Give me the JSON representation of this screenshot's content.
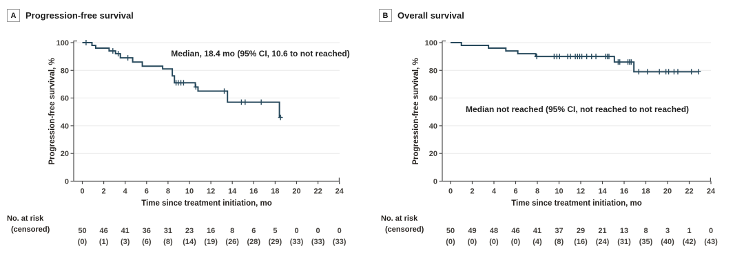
{
  "colors": {
    "curve": "#27495c",
    "grid": "#e9e9e9",
    "axis": "#4c4c4c",
    "tick_text": "#43403c",
    "title_text": "#1c1c1c",
    "panel_box_border": "#9b9b9b"
  },
  "chart_data": [
    {
      "type": "line",
      "subtype": "kaplan-meier-step",
      "panel_label": "A",
      "title": "Progression-free survival",
      "annotation": "Median, 18.4 mo (95% CI, 10.6 to not reached)",
      "xlabel": "Time since treatment initiation, mo",
      "ylabel": "Progression-free survival, %",
      "xlim": [
        0,
        24
      ],
      "ylim": [
        0,
        100
      ],
      "grid": "horizontal",
      "x_ticks": [
        0,
        2,
        4,
        6,
        8,
        10,
        12,
        14,
        16,
        18,
        20,
        22,
        24
      ],
      "y_ticks": [
        0,
        20,
        40,
        60,
        80,
        100
      ],
      "start": [
        0,
        100
      ],
      "drops": [
        [
          0.9,
          98
        ],
        [
          1.25,
          96
        ],
        [
          2.5,
          94
        ],
        [
          3.1,
          92
        ],
        [
          3.55,
          89
        ],
        [
          4.7,
          86
        ],
        [
          5.6,
          83
        ],
        [
          7.5,
          81
        ],
        [
          8.4,
          76
        ],
        [
          8.6,
          71
        ],
        [
          10.55,
          68
        ],
        [
          10.8,
          65
        ],
        [
          13.55,
          57
        ],
        [
          18.4,
          46
        ]
      ],
      "end_time": 18.65,
      "censors": [
        [
          0.35,
          100
        ],
        [
          2.85,
          94
        ],
        [
          3.35,
          92
        ],
        [
          4.25,
          89
        ],
        [
          8.75,
          71
        ],
        [
          8.95,
          71
        ],
        [
          9.2,
          71
        ],
        [
          9.45,
          71
        ],
        [
          10.6,
          68
        ],
        [
          13.25,
          65
        ],
        [
          14.85,
          57
        ],
        [
          15.2,
          57
        ],
        [
          16.7,
          57
        ],
        [
          18.5,
          46
        ]
      ],
      "risk_table": {
        "row_label_1": "No. at risk",
        "row_label_2": "(censored)",
        "at_risk": [
          50,
          46,
          41,
          36,
          31,
          23,
          16,
          8,
          6,
          5,
          0,
          0,
          0
        ],
        "censored": [
          0,
          1,
          3,
          6,
          8,
          14,
          19,
          26,
          28,
          29,
          33,
          33,
          33
        ]
      }
    },
    {
      "type": "line",
      "subtype": "kaplan-meier-step",
      "panel_label": "B",
      "title": "Overall survival",
      "annotation": "Median not reached (95% CI, not reached to not reached)",
      "xlabel": "Time since treatment initiation, mo",
      "ylabel": "Progression-free survival, %",
      "xlim": [
        0,
        24
      ],
      "ylim": [
        0,
        100
      ],
      "grid": "horizontal",
      "x_ticks": [
        0,
        2,
        4,
        6,
        8,
        10,
        12,
        14,
        16,
        18,
        20,
        22,
        24
      ],
      "y_ticks": [
        0,
        20,
        40,
        60,
        80,
        100
      ],
      "start": [
        0,
        100
      ],
      "drops": [
        [
          1.0,
          98
        ],
        [
          3.5,
          96
        ],
        [
          5.1,
          94
        ],
        [
          6.2,
          92
        ],
        [
          7.85,
          90
        ],
        [
          15.1,
          86
        ],
        [
          16.9,
          79
        ]
      ],
      "end_time": 22.9,
      "censors": [
        [
          7.95,
          90
        ],
        [
          9.55,
          90
        ],
        [
          9.8,
          90
        ],
        [
          10.05,
          90
        ],
        [
          10.8,
          90
        ],
        [
          11.05,
          90
        ],
        [
          11.5,
          90
        ],
        [
          11.7,
          90
        ],
        [
          11.9,
          90
        ],
        [
          12.1,
          90
        ],
        [
          12.55,
          90
        ],
        [
          13.0,
          90
        ],
        [
          13.4,
          90
        ],
        [
          14.3,
          90
        ],
        [
          14.45,
          90
        ],
        [
          14.6,
          90
        ],
        [
          15.45,
          86
        ],
        [
          15.6,
          86
        ],
        [
          16.35,
          86
        ],
        [
          16.5,
          86
        ],
        [
          16.65,
          86
        ],
        [
          17.35,
          79
        ],
        [
          18.15,
          79
        ],
        [
          19.25,
          79
        ],
        [
          19.85,
          79
        ],
        [
          20.1,
          79
        ],
        [
          20.6,
          79
        ],
        [
          20.95,
          79
        ],
        [
          22.2,
          79
        ],
        [
          22.85,
          79
        ]
      ],
      "risk_table": {
        "row_label_1": "No. at risk",
        "row_label_2": "(censored)",
        "at_risk": [
          50,
          49,
          48,
          46,
          41,
          37,
          29,
          21,
          13,
          8,
          3,
          1,
          0
        ],
        "censored": [
          0,
          0,
          0,
          0,
          4,
          8,
          16,
          24,
          31,
          35,
          40,
          42,
          43
        ]
      }
    }
  ]
}
